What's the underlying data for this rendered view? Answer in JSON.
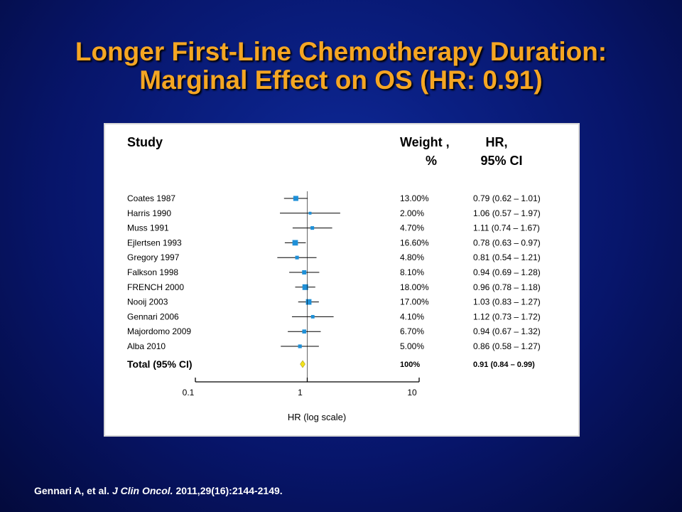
{
  "slide": {
    "title_line1": "Longer First-Line Chemotherapy Duration:",
    "title_line2": "Marginal Effect on OS (HR: 0.91)",
    "citation_authors": "Gennari A, et al.",
    "citation_journal": "J Clin Oncol.",
    "citation_rest": "2011,29(16):2144-2149."
  },
  "colors": {
    "title": "#f5a623",
    "background": "#0a1f82",
    "marker": "#1e90d8",
    "total_diamond": "#f2e21a"
  },
  "chart_data": {
    "type": "forest",
    "headers": {
      "study": "Study",
      "weight_line1": "Weight ,",
      "weight_line2": "%",
      "hr_line1": "HR,",
      "hr_line2": "95% CI"
    },
    "xlabel": "HR (log scale)",
    "x_scale": "log",
    "xlim": [
      0.1,
      10
    ],
    "x_ticks": [
      "0.1",
      "1",
      "10"
    ],
    "studies": [
      {
        "name": "Coates 1987",
        "weight": "13.00%",
        "hr": 0.79,
        "lo": 0.62,
        "hi": 1.01,
        "text": "0.79 (0.62 – 1.01)"
      },
      {
        "name": "Harris 1990",
        "weight": "2.00%",
        "hr": 1.06,
        "lo": 0.57,
        "hi": 1.97,
        "text": "1.06 (0.57 – 1.97)"
      },
      {
        "name": "Muss 1991",
        "weight": "4.70%",
        "hr": 1.11,
        "lo": 0.74,
        "hi": 1.67,
        "text": "1.11 (0.74 – 1.67)"
      },
      {
        "name": "Ejlertsen 1993",
        "weight": "16.60%",
        "hr": 0.78,
        "lo": 0.63,
        "hi": 0.97,
        "text": "0.78 (0.63 – 0.97)"
      },
      {
        "name": "Gregory 1997",
        "weight": "4.80%",
        "hr": 0.81,
        "lo": 0.54,
        "hi": 1.21,
        "text": "0.81 (0.54 – 1.21)"
      },
      {
        "name": "Falkson 1998",
        "weight": "8.10%",
        "hr": 0.94,
        "lo": 0.69,
        "hi": 1.28,
        "text": "0.94 (0.69 – 1.28)"
      },
      {
        "name": "FRENCH 2000",
        "weight": "18.00%",
        "hr": 0.96,
        "lo": 0.78,
        "hi": 1.18,
        "text": "0.96 (0.78 – 1.18)"
      },
      {
        "name": "Nooij 2003",
        "weight": "17.00%",
        "hr": 1.03,
        "lo": 0.83,
        "hi": 1.27,
        "text": "1.03 (0.83 – 1.27)"
      },
      {
        "name": "Gennari 2006",
        "weight": "4.10%",
        "hr": 1.12,
        "lo": 0.73,
        "hi": 1.72,
        "text": "1.12 (0.73 – 1.72)"
      },
      {
        "name": "Majordomo 2009",
        "weight": "6.70%",
        "hr": 0.94,
        "lo": 0.67,
        "hi": 1.32,
        "text": "0.94 (0.67 – 1.32)"
      },
      {
        "name": "Alba 2010",
        "weight": "5.00%",
        "hr": 0.86,
        "lo": 0.58,
        "hi": 1.27,
        "text": "0.86 (0.58 – 1.27)"
      }
    ],
    "total": {
      "name": "Total (95% CI)",
      "weight": "100%",
      "hr": 0.91,
      "lo": 0.84,
      "hi": 0.99,
      "text": "0.91 (0.84 – 0.99)"
    }
  }
}
